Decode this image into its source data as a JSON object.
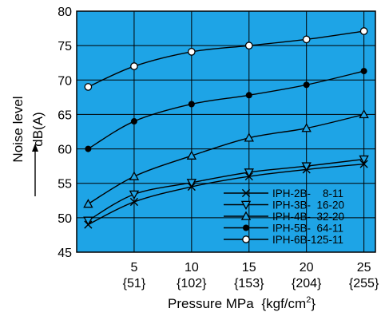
{
  "chart_data": {
    "type": "line",
    "background_color": "#1ea4e6",
    "line_color": "#000000",
    "grid": true,
    "legend_position": "bottom-right",
    "xlabel": "Pressure MPa",
    "xlabel_unit_open": "{kgf/cm",
    "xlabel_unit_sup": "2",
    "xlabel_unit_close": "}",
    "ylabel": "Noise level dB(A)",
    "ylabel_line1": "Noise level",
    "ylabel_line2": "dB(A)",
    "xlim": [
      0,
      26
    ],
    "ylim": [
      45,
      80
    ],
    "x_ticks": [
      {
        "value": 5,
        "label": "5",
        "sub": "{51}"
      },
      {
        "value": 10,
        "label": "10",
        "sub": "{102}"
      },
      {
        "value": 15,
        "label": "15",
        "sub": "{153}"
      },
      {
        "value": 20,
        "label": "20",
        "sub": "{204}"
      },
      {
        "value": 25,
        "label": "25",
        "sub": "{255}"
      }
    ],
    "y_ticks": [
      45,
      50,
      55,
      60,
      65,
      70,
      75,
      80
    ],
    "series": [
      {
        "name": "IPH-2B-    8-11",
        "marker": "x",
        "x": [
          1,
          5,
          10,
          15,
          20,
          25
        ],
        "y": [
          49.0,
          52.3,
          54.5,
          56.0,
          57.0,
          57.8
        ]
      },
      {
        "name": "IPH-3B-  16-20",
        "marker": "triangle-down",
        "x": [
          1,
          5,
          10,
          15,
          20,
          25
        ],
        "y": [
          49.6,
          53.4,
          55.1,
          56.6,
          57.5,
          58.5
        ]
      },
      {
        "name": "IPH-4B-  32-20",
        "marker": "triangle-up",
        "x": [
          1,
          5,
          10,
          15,
          20,
          25
        ],
        "y": [
          52.0,
          56.0,
          59.0,
          61.6,
          63.0,
          65.0
        ]
      },
      {
        "name": "IPH-5B-  64-11",
        "marker": "filled-circle",
        "x": [
          1,
          5,
          10,
          15,
          20,
          25
        ],
        "y": [
          60.0,
          64.0,
          66.5,
          67.8,
          69.3,
          71.3
        ]
      },
      {
        "name": "IPH-6B-125-11",
        "marker": "open-circle",
        "x": [
          1,
          5,
          10,
          15,
          20,
          25
        ],
        "y": [
          69.0,
          72.0,
          74.1,
          75.0,
          75.9,
          77.1
        ]
      }
    ]
  }
}
